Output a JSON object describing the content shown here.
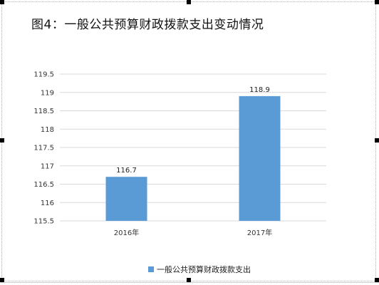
{
  "chart_data": {
    "type": "bar",
    "title": "图4：一般公共预算财政拨款支出变动情况",
    "categories": [
      "2016年",
      "2017年"
    ],
    "series": [
      {
        "name": "一般公共预算财政拨款支出",
        "values": [
          116.7,
          118.9
        ],
        "color": "#5b9bd5"
      }
    ],
    "data_labels": [
      "116.7",
      "118.9"
    ],
    "ylim": [
      115.5,
      119.5
    ],
    "yticks": [
      115.5,
      116,
      116.5,
      117,
      117.5,
      118,
      118.5,
      119,
      119.5
    ],
    "ytick_labels": [
      "115.5",
      "116",
      "116.5",
      "117",
      "117.5",
      "118",
      "118.5",
      "119",
      "119.5"
    ],
    "grid": true,
    "legend_position": "bottom",
    "gridline_color": "#d9d9d9"
  }
}
